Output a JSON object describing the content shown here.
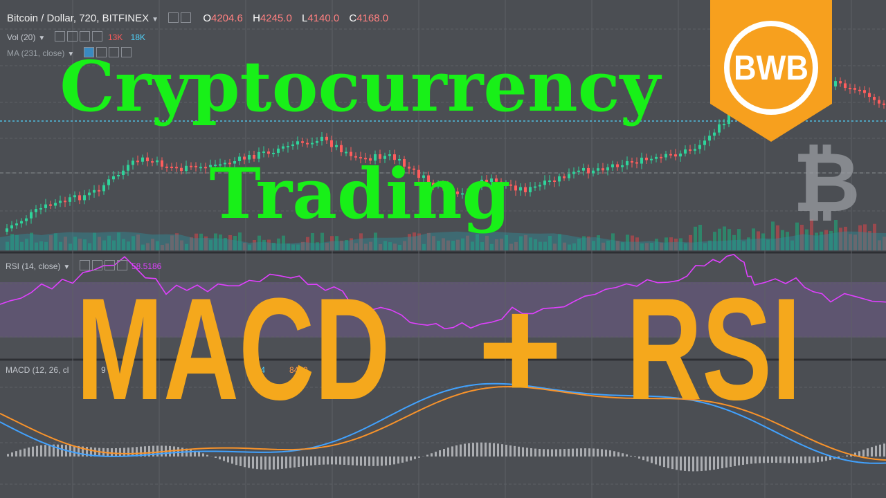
{
  "header": {
    "symbol": "Bitcoin / Dollar, 720, BITFINEX",
    "open_label": "O",
    "open": "4204.6",
    "high_label": "H",
    "high": "4245.0",
    "low_label": "L",
    "low": "4140.0",
    "close_label": "C",
    "close": "4168.0"
  },
  "indicators": {
    "vol": {
      "label": "Vol (20)",
      "v1": "13K",
      "v2": "18K",
      "c1": "#ff5a5a",
      "c2": "#4fd6ff"
    },
    "ma": {
      "label": "MA (231, close)"
    },
    "rsi": {
      "label": "RSI (14, close)",
      "value": "58.5186",
      "color": "#e040ff"
    },
    "macd": {
      "label": "MACD (12, 26, cl",
      "v1": "9",
      "v2": "5",
      "v3": "95",
      "v4": "694",
      "v5": "8499"
    }
  },
  "title": {
    "line1": "Cryptocurrency",
    "line2": "Trading"
  },
  "headline": {
    "left": "MACD",
    "plus": "+",
    "right": "RSI"
  },
  "logo": {
    "text": "BWB",
    "color": "#f7a01e"
  },
  "colors": {
    "up": "#2fd39a",
    "down": "#ff5d5d",
    "rsi": "#e040ff",
    "macd": "#41a2ff",
    "signal": "#f9932a"
  }
}
